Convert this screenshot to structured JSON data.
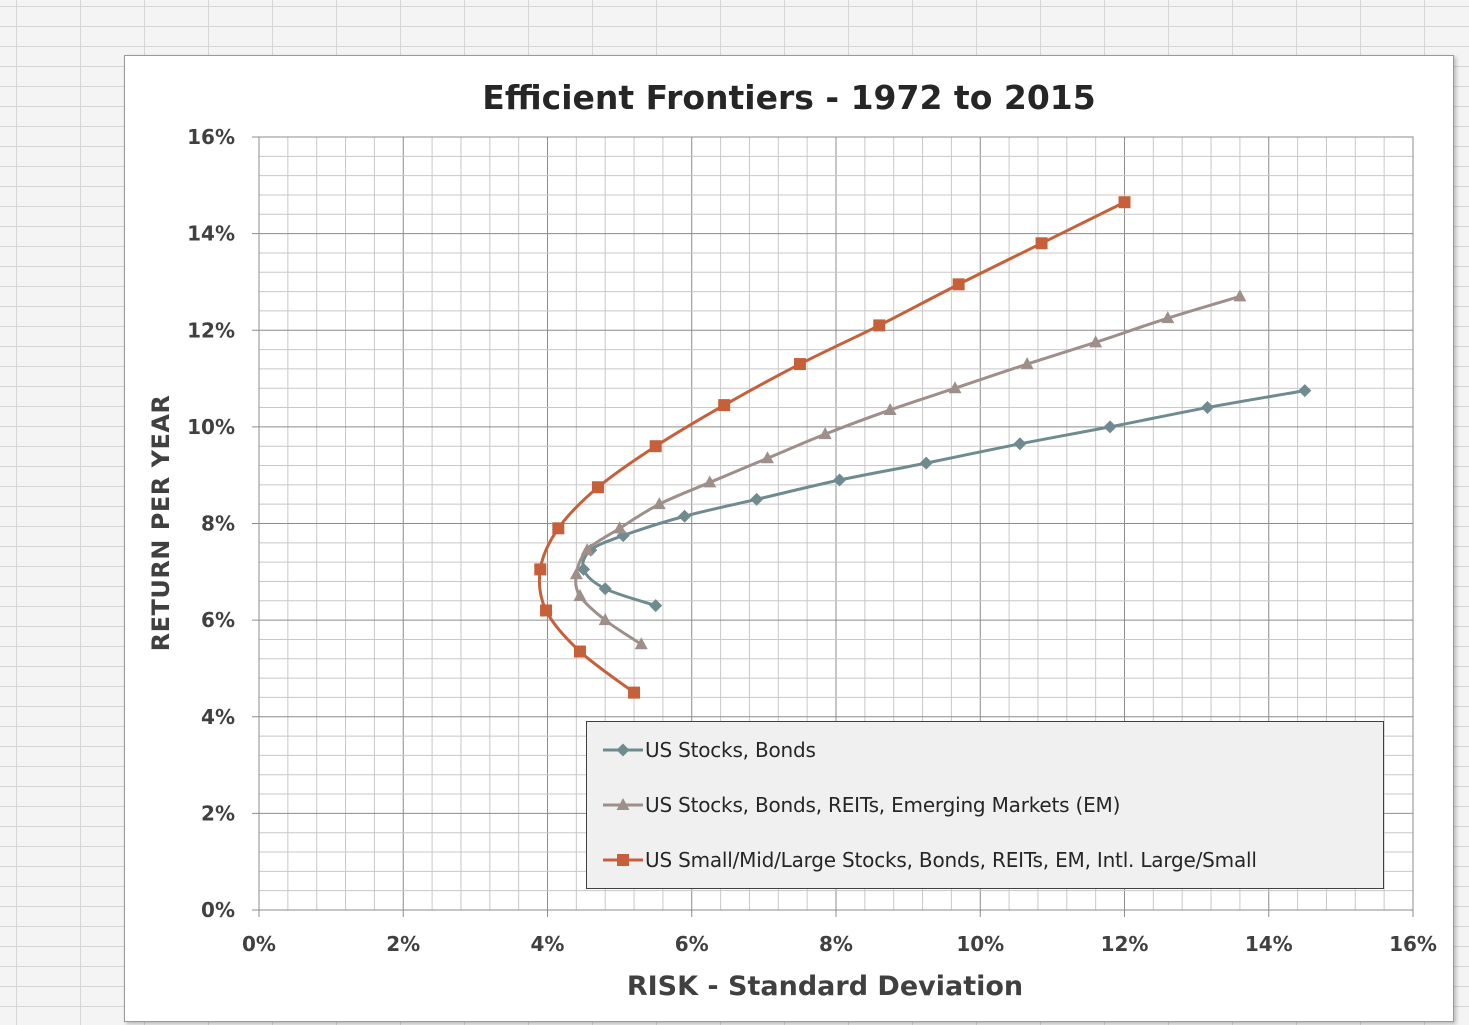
{
  "chart_data": {
    "type": "line",
    "title": "Efficient Frontiers - 1972 to 2015",
    "xlabel": "RISK - Standard Deviation",
    "ylabel": "RETURN PER YEAR",
    "xlim": [
      0,
      16
    ],
    "ylim": [
      0,
      16
    ],
    "x_ticks": [
      "0%",
      "2%",
      "4%",
      "6%",
      "8%",
      "10%",
      "12%",
      "14%",
      "16%"
    ],
    "y_ticks": [
      "0%",
      "2%",
      "4%",
      "6%",
      "8%",
      "10%",
      "12%",
      "14%",
      "16%"
    ],
    "grid": true,
    "legend_position": "bottom-right",
    "series": [
      {
        "name": "US Stocks, Bonds",
        "color": "#6f8b8f",
        "marker": "diamond",
        "points": [
          [
            5.5,
            6.3
          ],
          [
            4.8,
            6.65
          ],
          [
            4.5,
            7.05
          ],
          [
            4.6,
            7.45
          ],
          [
            5.05,
            7.75
          ],
          [
            5.9,
            8.15
          ],
          [
            6.9,
            8.5
          ],
          [
            8.05,
            8.9
          ],
          [
            9.25,
            9.25
          ],
          [
            10.55,
            9.65
          ],
          [
            11.8,
            10.0
          ],
          [
            13.15,
            10.4
          ],
          [
            14.5,
            10.75
          ]
        ]
      },
      {
        "name": "US Stocks, Bonds, REITs, Emerging Markets (EM)",
        "color": "#9e8f8a",
        "marker": "triangle",
        "points": [
          [
            5.3,
            5.5
          ],
          [
            4.8,
            6.0
          ],
          [
            4.45,
            6.5
          ],
          [
            4.4,
            6.95
          ],
          [
            4.55,
            7.45
          ],
          [
            5.0,
            7.9
          ],
          [
            5.55,
            8.4
          ],
          [
            6.25,
            8.85
          ],
          [
            7.05,
            9.35
          ],
          [
            7.85,
            9.85
          ],
          [
            8.75,
            10.35
          ],
          [
            9.65,
            10.8
          ],
          [
            10.65,
            11.3
          ],
          [
            11.6,
            11.75
          ],
          [
            12.6,
            12.25
          ],
          [
            13.6,
            12.7
          ]
        ]
      },
      {
        "name": "US Small/Mid/Large Stocks, Bonds, REITs, EM, Intl. Large/Small",
        "color": "#c5603b",
        "marker": "square",
        "points": [
          [
            5.2,
            4.5
          ],
          [
            4.45,
            5.35
          ],
          [
            3.98,
            6.2
          ],
          [
            3.9,
            7.05
          ],
          [
            4.15,
            7.9
          ],
          [
            4.7,
            8.75
          ],
          [
            5.5,
            9.6
          ],
          [
            6.45,
            10.45
          ],
          [
            7.5,
            11.3
          ],
          [
            8.6,
            12.1
          ],
          [
            9.7,
            12.95
          ],
          [
            10.85,
            13.8
          ],
          [
            12.0,
            14.65
          ]
        ]
      }
    ]
  }
}
